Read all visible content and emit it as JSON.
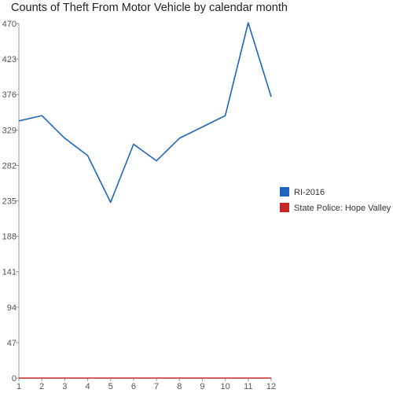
{
  "chart_data": {
    "type": "line",
    "title": "Counts of Theft From Motor Vehicle by calendar month",
    "xlabel": "",
    "ylabel": "",
    "x": [
      1,
      2,
      3,
      4,
      5,
      6,
      7,
      8,
      9,
      10,
      11,
      12
    ],
    "ylim": [
      0,
      470
    ],
    "yticks": [
      0,
      47,
      94,
      141,
      188,
      235,
      282,
      329,
      376,
      423,
      470
    ],
    "grid": false,
    "legend_position": "right",
    "series": [
      {
        "name": "RI-2016",
        "color": "#1f64c0",
        "values": [
          341,
          348,
          318,
          295,
          233,
          310,
          288,
          318,
          333,
          348,
          471,
          373
        ]
      },
      {
        "name": "State Police: Hope Valley",
        "color": "#c62828",
        "values": [
          0,
          0,
          0,
          0,
          0,
          0,
          0,
          0,
          0,
          0,
          0,
          0
        ]
      }
    ]
  }
}
